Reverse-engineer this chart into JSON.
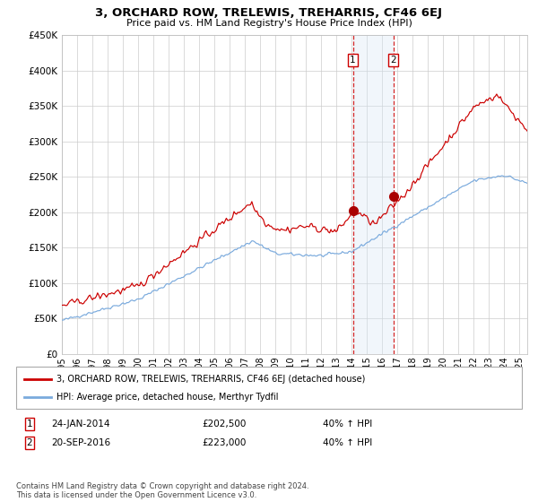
{
  "title": "3, ORCHARD ROW, TRELEWIS, TREHARRIS, CF46 6EJ",
  "subtitle": "Price paid vs. HM Land Registry's House Price Index (HPI)",
  "legend_line1": "3, ORCHARD ROW, TRELEWIS, TREHARRIS, CF46 6EJ (detached house)",
  "legend_line2": "HPI: Average price, detached house, Merthyr Tydfil",
  "transaction1_date": "24-JAN-2014",
  "transaction1_price": "£202,500",
  "transaction1_hpi": "40% ↑ HPI",
  "transaction2_date": "20-SEP-2016",
  "transaction2_price": "£223,000",
  "transaction2_hpi": "40% ↑ HPI",
  "footer": "Contains HM Land Registry data © Crown copyright and database right 2024.\nThis data is licensed under the Open Government Licence v3.0.",
  "hpi_color": "#7aaadd",
  "price_color": "#cc0000",
  "marker_color": "#aa0000",
  "vline_color": "#cc0000",
  "shade_color": "#d8e8f5",
  "grid_color": "#cccccc",
  "background_color": "#ffffff",
  "ylim": [
    0,
    450000
  ],
  "yticks": [
    0,
    50000,
    100000,
    150000,
    200000,
    250000,
    300000,
    350000,
    400000,
    450000
  ],
  "t1_x": 2014.07,
  "t2_x": 2016.73,
  "t1_y": 202500,
  "t2_y": 223000,
  "xlim_left": 1995.0,
  "xlim_right": 2025.5
}
